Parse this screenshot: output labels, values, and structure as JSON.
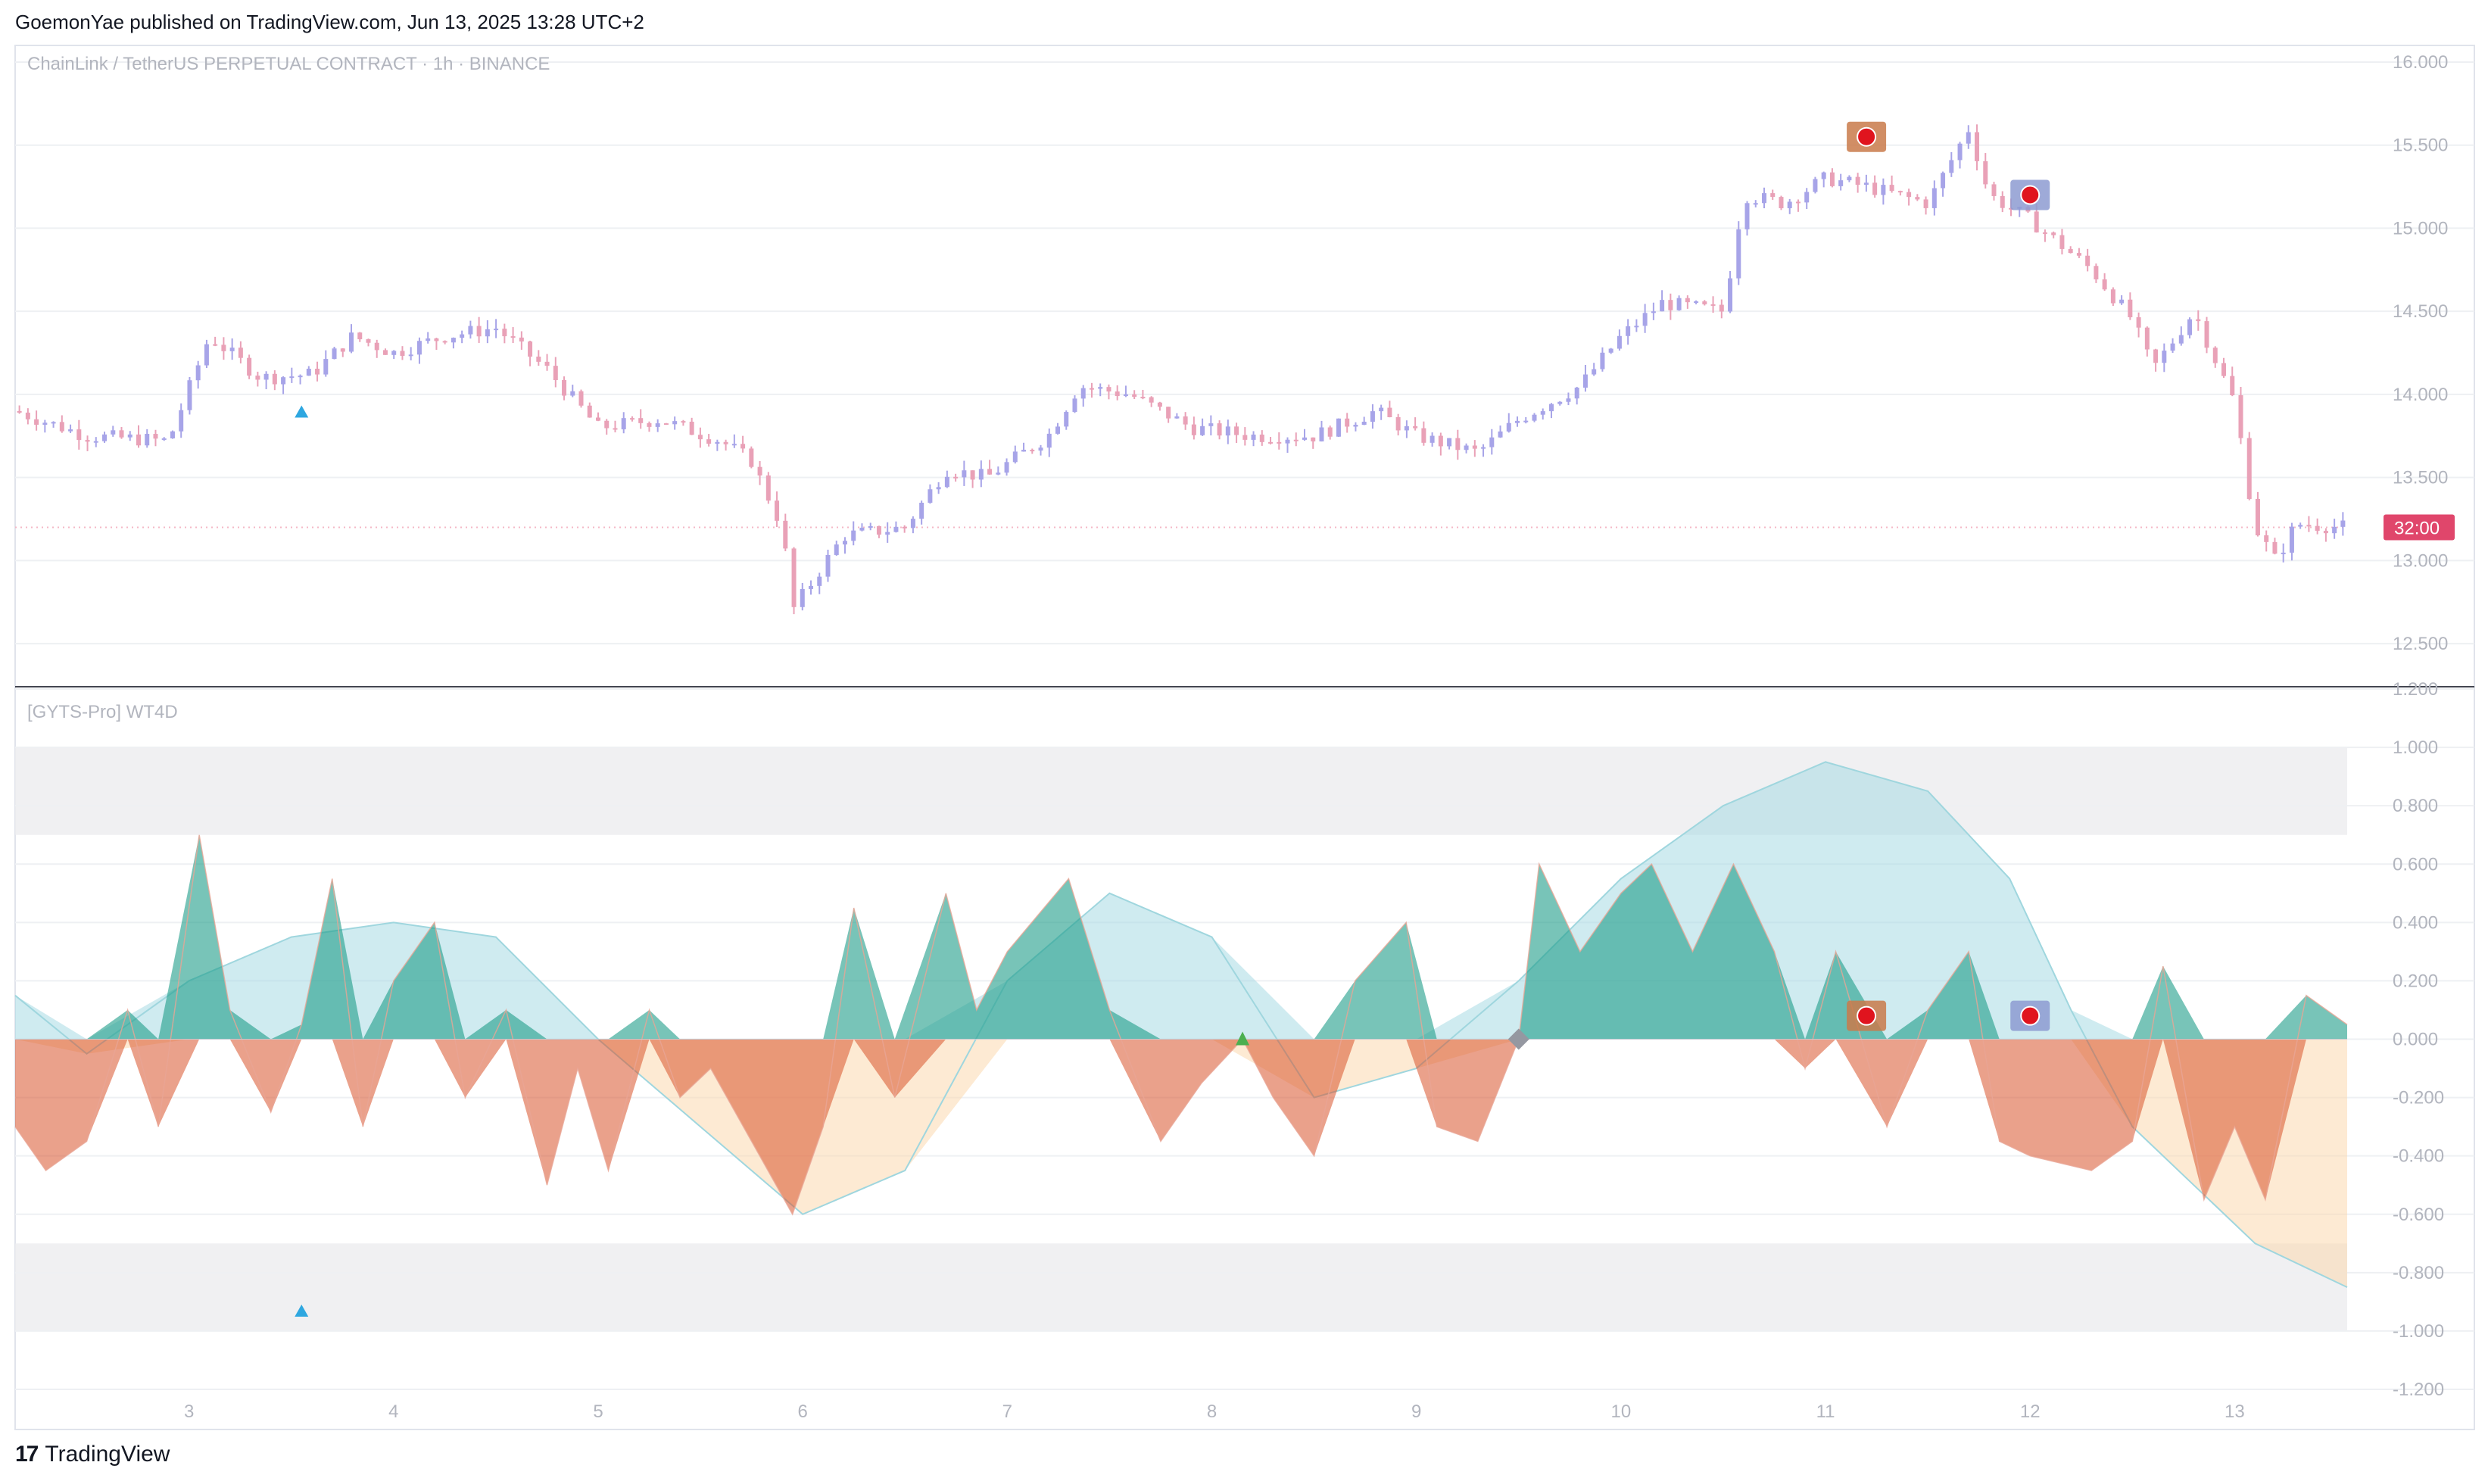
{
  "header": {
    "text": "GoemonYae published on TradingView.com, Jun 13, 2025 13:28 UTC+2"
  },
  "footer": {
    "logo": "17",
    "brand": "TradingView"
  },
  "colors": {
    "up": "#a7a4e8",
    "down": "#e9a1b7",
    "teal": "#1e9c88",
    "red": "#d9532b",
    "price_tag": "#e0466b",
    "grid": "#eef0f3",
    "axis_text": "#b2b5be"
  },
  "chart_data": [
    {
      "type": "candlestick",
      "title": "ChainLink / TetherUS PERPETUAL CONTRACT · 1h · BINANCE",
      "ylim": [
        12.25,
        16.1
      ],
      "y_ticks": [
        "16.000",
        "15.500",
        "15.000",
        "14.500",
        "14.000",
        "13.500",
        "13.000",
        "12.500"
      ],
      "current_price_tag": "32:00",
      "current_price": 13.2,
      "marker_day": 3.55,
      "signals": [
        {
          "day": 11.2,
          "price": 15.55,
          "kind": "orange-badge"
        },
        {
          "day": 12.0,
          "price": 15.2,
          "kind": "blue-badge"
        }
      ],
      "close_path": [
        [
          2.15,
          13.9
        ],
        [
          2.5,
          13.75
        ],
        [
          2.9,
          13.72
        ],
        [
          3.1,
          14.35
        ],
        [
          3.35,
          14.1
        ],
        [
          3.6,
          14.12
        ],
        [
          3.8,
          14.35
        ],
        [
          4.0,
          14.25
        ],
        [
          4.25,
          14.35
        ],
        [
          4.5,
          14.4
        ],
        [
          4.75,
          14.15
        ],
        [
          5.0,
          13.8
        ],
        [
          5.3,
          13.85
        ],
        [
          5.6,
          13.72
        ],
        [
          5.75,
          13.6
        ],
        [
          5.9,
          13.2
        ],
        [
          5.95,
          12.7
        ],
        [
          6.2,
          13.15
        ],
        [
          6.5,
          13.2
        ],
        [
          6.7,
          13.55
        ],
        [
          6.9,
          13.5
        ],
        [
          7.2,
          13.75
        ],
        [
          7.35,
          14.05
        ],
        [
          7.6,
          14.0
        ],
        [
          7.9,
          13.8
        ],
        [
          8.2,
          13.75
        ],
        [
          8.5,
          13.75
        ],
        [
          8.8,
          13.9
        ],
        [
          9.0,
          13.75
        ],
        [
          9.3,
          13.65
        ],
        [
          9.5,
          13.85
        ],
        [
          9.8,
          14.05
        ],
        [
          10.0,
          14.35
        ],
        [
          10.2,
          14.55
        ],
        [
          10.5,
          14.5
        ],
        [
          10.6,
          15.2
        ],
        [
          10.8,
          15.15
        ],
        [
          11.0,
          15.3
        ],
        [
          11.2,
          15.25
        ],
        [
          11.5,
          15.15
        ],
        [
          11.7,
          15.6
        ],
        [
          11.8,
          15.2
        ],
        [
          12.0,
          15.05
        ],
        [
          12.3,
          14.75
        ],
        [
          12.5,
          14.45
        ],
        [
          12.6,
          14.15
        ],
        [
          12.8,
          14.5
        ],
        [
          13.0,
          13.95
        ],
        [
          13.1,
          13.2
        ],
        [
          13.2,
          13.0
        ],
        [
          13.3,
          13.22
        ],
        [
          13.55,
          13.2
        ]
      ]
    },
    {
      "type": "area",
      "title": "[GYTS-Pro] WT4D",
      "ylim": [
        -1.2,
        1.2
      ],
      "y_ticks": [
        "1.200",
        "1.000",
        "0.800",
        "0.600",
        "0.400",
        "0.200",
        "0.000",
        "-0.200",
        "-0.400",
        "-0.600",
        "-0.800",
        "-1.000",
        "-1.200"
      ],
      "bands": [
        [
          0.7,
          1.0
        ],
        [
          -1.0,
          -0.7
        ]
      ],
      "fast_wave": [
        [
          2.15,
          -0.3
        ],
        [
          2.3,
          -0.45
        ],
        [
          2.5,
          -0.35
        ],
        [
          2.7,
          0.1
        ],
        [
          2.85,
          -0.3
        ],
        [
          3.05,
          0.7
        ],
        [
          3.2,
          0.1
        ],
        [
          3.4,
          -0.25
        ],
        [
          3.55,
          0.05
        ],
        [
          3.7,
          0.55
        ],
        [
          3.85,
          -0.3
        ],
        [
          4.0,
          0.2
        ],
        [
          4.2,
          0.4
        ],
        [
          4.35,
          -0.2
        ],
        [
          4.55,
          0.1
        ],
        [
          4.75,
          -0.5
        ],
        [
          4.9,
          -0.1
        ],
        [
          5.05,
          -0.45
        ],
        [
          5.25,
          0.1
        ],
        [
          5.4,
          -0.2
        ],
        [
          5.55,
          -0.1
        ],
        [
          5.75,
          -0.35
        ],
        [
          5.95,
          -0.6
        ],
        [
          6.1,
          -0.3
        ],
        [
          6.25,
          0.45
        ],
        [
          6.45,
          -0.2
        ],
        [
          6.7,
          0.5
        ],
        [
          6.85,
          0.1
        ],
        [
          7.0,
          0.3
        ],
        [
          7.3,
          0.55
        ],
        [
          7.5,
          0.1
        ],
        [
          7.75,
          -0.35
        ],
        [
          7.95,
          -0.15
        ],
        [
          8.15,
          0.0
        ],
        [
          8.3,
          -0.2
        ],
        [
          8.5,
          -0.4
        ],
        [
          8.7,
          0.2
        ],
        [
          8.95,
          0.4
        ],
        [
          9.1,
          -0.3
        ],
        [
          9.3,
          -0.35
        ],
        [
          9.5,
          0.0
        ],
        [
          9.6,
          0.6
        ],
        [
          9.8,
          0.3
        ],
        [
          10.0,
          0.5
        ],
        [
          10.15,
          0.6
        ],
        [
          10.35,
          0.3
        ],
        [
          10.55,
          0.6
        ],
        [
          10.75,
          0.3
        ],
        [
          10.9,
          -0.1
        ],
        [
          11.05,
          0.3
        ],
        [
          11.3,
          -0.3
        ],
        [
          11.5,
          0.1
        ],
        [
          11.7,
          0.3
        ],
        [
          11.85,
          -0.35
        ],
        [
          12.0,
          -0.4
        ],
        [
          12.3,
          -0.45
        ],
        [
          12.5,
          -0.35
        ],
        [
          12.65,
          0.25
        ],
        [
          12.85,
          -0.55
        ],
        [
          13.0,
          -0.3
        ],
        [
          13.15,
          -0.55
        ],
        [
          13.35,
          0.15
        ],
        [
          13.55,
          0.05
        ]
      ],
      "slow_wave": [
        [
          2.15,
          0.15
        ],
        [
          2.5,
          -0.05
        ],
        [
          3.0,
          0.2
        ],
        [
          3.5,
          0.35
        ],
        [
          4.0,
          0.4
        ],
        [
          4.5,
          0.35
        ],
        [
          5.0,
          0.0
        ],
        [
          5.5,
          -0.3
        ],
        [
          6.0,
          -0.6
        ],
        [
          6.5,
          -0.45
        ],
        [
          7.0,
          0.2
        ],
        [
          7.5,
          0.5
        ],
        [
          8.0,
          0.35
        ],
        [
          8.5,
          -0.2
        ],
        [
          9.0,
          -0.1
        ],
        [
          9.5,
          0.2
        ],
        [
          10.0,
          0.55
        ],
        [
          10.5,
          0.8
        ],
        [
          11.0,
          0.95
        ],
        [
          11.5,
          0.85
        ],
        [
          11.9,
          0.55
        ],
        [
          12.2,
          0.1
        ],
        [
          12.5,
          -0.3
        ],
        [
          12.8,
          -0.5
        ],
        [
          13.1,
          -0.7
        ],
        [
          13.55,
          -0.85
        ]
      ],
      "signals": [
        {
          "day": 3.55,
          "value": -0.93,
          "kind": "blue-triangle"
        },
        {
          "day": 8.15,
          "value": 0.0,
          "kind": "green-triangle"
        },
        {
          "day": 9.5,
          "value": 0.0,
          "kind": "grey-diamond"
        },
        {
          "day": 11.2,
          "value": 0.08,
          "kind": "orange-badge"
        },
        {
          "day": 12.0,
          "value": 0.08,
          "kind": "blue-badge"
        }
      ]
    }
  ],
  "x_axis": {
    "ticks": [
      {
        "day": 3,
        "label": "3"
      },
      {
        "day": 4,
        "label": "4"
      },
      {
        "day": 5,
        "label": "5"
      },
      {
        "day": 6,
        "label": "6"
      },
      {
        "day": 7,
        "label": "7"
      },
      {
        "day": 8,
        "label": "8"
      },
      {
        "day": 9,
        "label": "9"
      },
      {
        "day": 10,
        "label": "10"
      },
      {
        "day": 11,
        "label": "11"
      },
      {
        "day": 12,
        "label": "12"
      },
      {
        "day": 13,
        "label": "13"
      }
    ],
    "xlim": [
      2.15,
      13.55
    ]
  }
}
